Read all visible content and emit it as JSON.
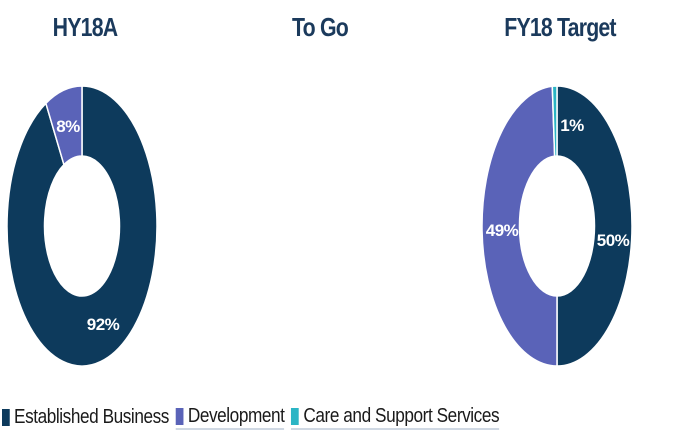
{
  "colors": {
    "established": "#0d3a5c",
    "development": "#5a63b8",
    "care": "#2bb5c5"
  },
  "chart_data": [
    {
      "type": "donut",
      "title": "HY18A",
      "slices": [
        {
          "series": "Established Business",
          "value": 92,
          "label": "92%"
        },
        {
          "series": "Development",
          "value": 8,
          "label": "8%"
        }
      ]
    },
    {
      "type": "donut",
      "title": "To Go",
      "slices": []
    },
    {
      "type": "donut",
      "title": "FY18 Target",
      "slices": [
        {
          "series": "Established Business",
          "value": 50,
          "label": "50%"
        },
        {
          "series": "Development",
          "value": 49,
          "label": "49%"
        },
        {
          "series": "Care and Support Services",
          "value": 1,
          "label": "1%"
        }
      ]
    }
  ],
  "legend": [
    {
      "key": "established",
      "label": "Established Business"
    },
    {
      "key": "development",
      "label": "Development"
    },
    {
      "key": "care",
      "label": "Care and Support Services"
    }
  ]
}
